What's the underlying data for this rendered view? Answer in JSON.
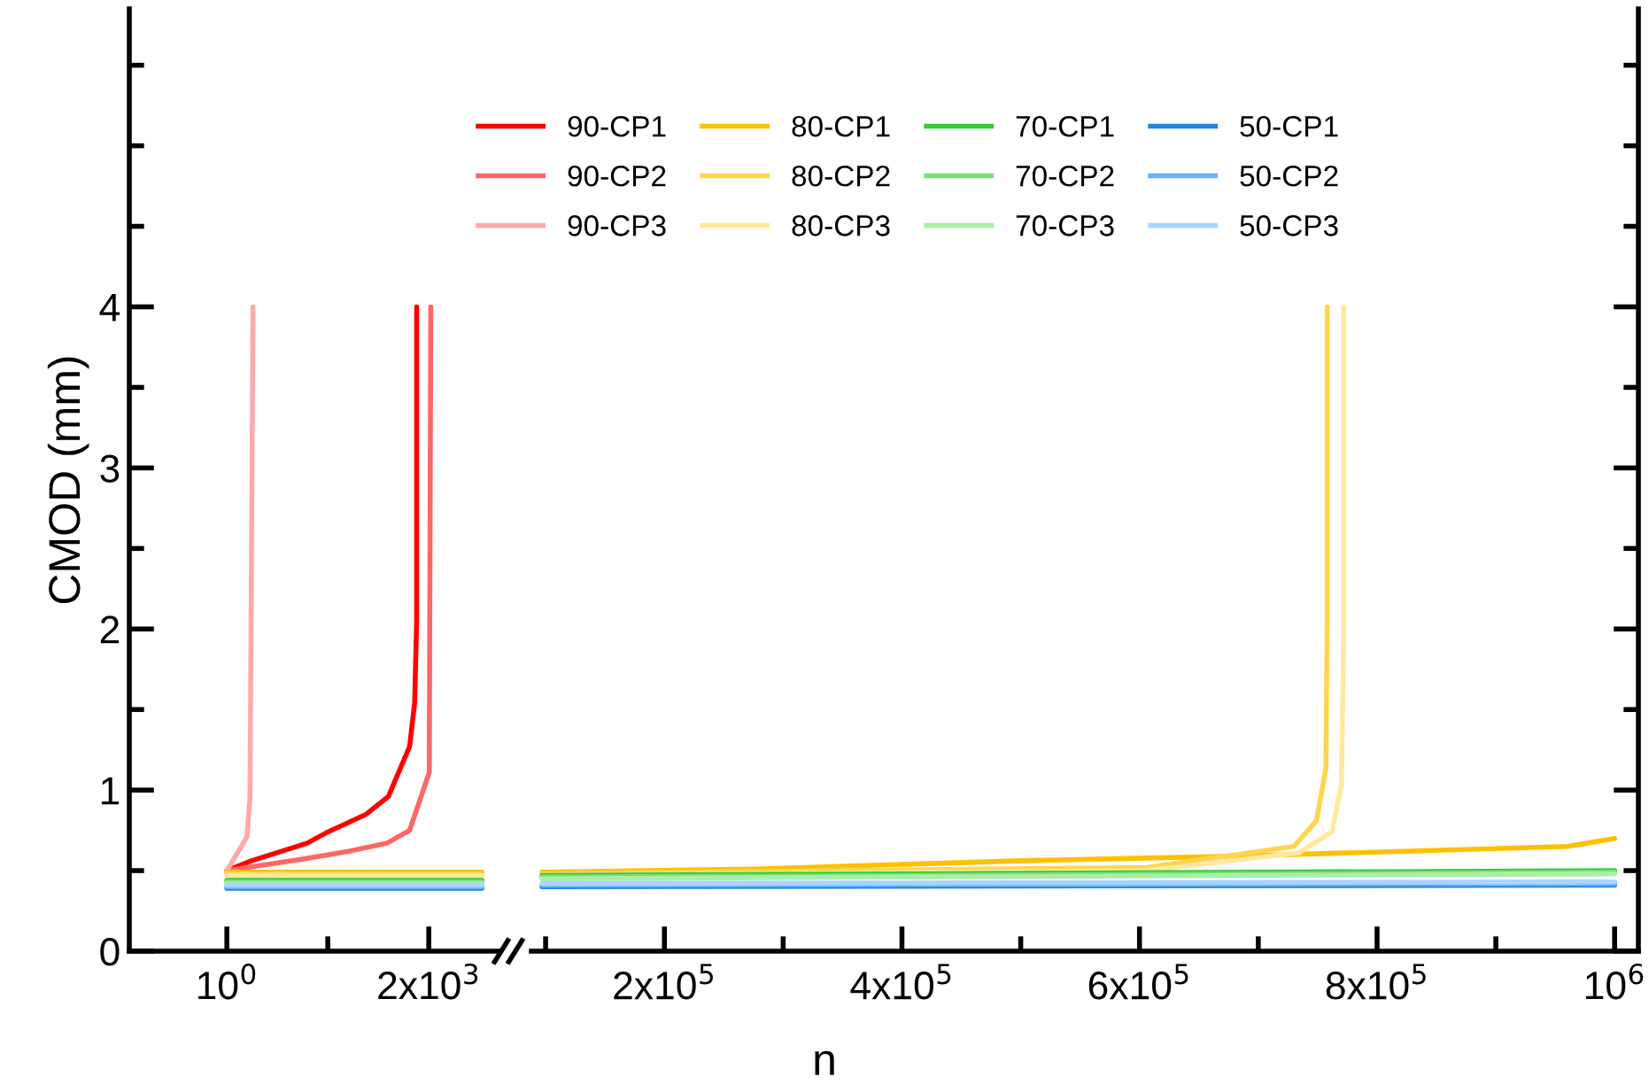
{
  "chart_data": [
    {
      "type": "line",
      "ylabel": "CMOD (mm)",
      "legend": "top",
      "grid": false,
      "line_style": "solid",
      "marker": "none",
      "xlim": [
        -965,
        2700
      ],
      "ylim": [
        0,
        5.85
      ],
      "xticks": [
        {
          "value": 1,
          "label": "10$^{0}$"
        },
        {
          "value": 1000,
          "label": null
        },
        {
          "value": 2000,
          "label": "2x10$^{3}$"
        }
      ],
      "yticks": [
        0,
        {
          "value": 0.5,
          "label": null
        },
        1,
        {
          "value": 1.5,
          "label": null
        },
        2,
        {
          "value": 2.5,
          "label": null
        },
        3,
        {
          "value": 3.5,
          "label": null
        },
        4,
        {
          "value": 4.5,
          "label": null
        },
        {
          "value": 5,
          "label": null
        },
        {
          "value": 5.5,
          "label": null
        }
      ],
      "series": [
        {
          "name": "90-CP1",
          "color": "#ff0000",
          "x": [
            1,
            240,
            795,
            1000,
            1380,
            1600,
            1810,
            1860,
            1880,
            1880
          ],
          "values": [
            0.5,
            0.56,
            0.67,
            0.74,
            0.85,
            0.96,
            1.27,
            1.54,
            2.05,
            4.0
          ]
        },
        {
          "name": "90-CP2",
          "color": "#ff6666",
          "x": [
            1,
            740,
            1205,
            1585,
            1810,
            2005,
            2020
          ],
          "values": [
            0.5,
            0.57,
            0.62,
            0.67,
            0.75,
            1.11,
            4.0
          ]
        },
        {
          "name": "90-CP3",
          "color": "#ffaaaa",
          "x": [
            1,
            200,
            230,
            260
          ],
          "values": [
            0.5,
            0.71,
            0.96,
            4.0
          ]
        },
        {
          "name": "80-CP1",
          "color": "#ffc000",
          "x": [
            1,
            2526
          ],
          "values": [
            0.49,
            0.49
          ]
        },
        {
          "name": "80-CP2",
          "color": "#ffd54f",
          "x": [
            1,
            2526
          ],
          "values": [
            0.48,
            0.48
          ]
        },
        {
          "name": "80-CP3",
          "color": "#ffe9a0",
          "x": [
            1,
            2526
          ],
          "values": [
            0.47,
            0.47
          ]
        },
        {
          "name": "70-CP1",
          "color": "#33cc33",
          "x": [
            1,
            2526
          ],
          "values": [
            0.44,
            0.44
          ]
        },
        {
          "name": "70-CP2",
          "color": "#77dd77",
          "x": [
            1,
            2526
          ],
          "values": [
            0.43,
            0.43
          ]
        },
        {
          "name": "70-CP3",
          "color": "#aaeeaa",
          "x": [
            1,
            2526
          ],
          "values": [
            0.42,
            0.42
          ]
        },
        {
          "name": "50-CP1",
          "color": "#1e88e5",
          "x": [
            1,
            2526
          ],
          "values": [
            0.39,
            0.39
          ]
        },
        {
          "name": "50-CP2",
          "color": "#66b2ff",
          "x": [
            1,
            2526
          ],
          "values": [
            0.4,
            0.4
          ]
        },
        {
          "name": "50-CP3",
          "color": "#a8d4ff",
          "x": [
            1,
            2526
          ],
          "values": [
            0.41,
            0.41
          ]
        }
      ]
    },
    {
      "type": "line",
      "xlabel": "n",
      "grid": false,
      "line_style": "solid",
      "marker": "none",
      "tick_labels": "x",
      "xlim": [
        88000,
        1020000
      ],
      "ylim": [
        0,
        5.85
      ],
      "xticks": [
        {
          "value": 100000,
          "label": null
        },
        {
          "value": 200000,
          "label": "2x10$^{5}$"
        },
        {
          "value": 300000,
          "label": null
        },
        {
          "value": 400000,
          "label": "4x10$^{5}$"
        },
        {
          "value": 500000,
          "label": null
        },
        {
          "value": 600000,
          "label": "6x10$^{5}$"
        },
        {
          "value": 700000,
          "label": null
        },
        {
          "value": 800000,
          "label": "8x10$^{5}$"
        },
        {
          "value": 900000,
          "label": null
        },
        {
          "value": 1000000,
          "label": "10$^{6}$"
        }
      ],
      "yticks": [
        0,
        {
          "value": 0.5,
          "label": null
        },
        1,
        {
          "value": 1.5,
          "label": null
        },
        2,
        {
          "value": 2.5,
          "label": null
        },
        3,
        {
          "value": 3.5,
          "label": null
        },
        4,
        {
          "value": 4.5,
          "label": null
        },
        {
          "value": 5,
          "label": null
        },
        {
          "value": 5.5,
          "label": null
        }
      ],
      "series": [
        {
          "color": "#ffc000",
          "x": [
            97000,
            276000,
            494000,
            680000,
            867000,
            960000,
            1000000
          ],
          "values": [
            0.49,
            0.51,
            0.56,
            0.59,
            0.63,
            0.65,
            0.7
          ]
        },
        {
          "color": "#ffd54f",
          "x": [
            97000,
            606000,
            730000,
            749000,
            757000,
            758000,
            758000
          ],
          "values": [
            0.48,
            0.52,
            0.65,
            0.81,
            1.14,
            2.05,
            4.0
          ]
        },
        {
          "color": "#ffe9a0",
          "x": [
            97000,
            606000,
            734000,
            762000,
            770000,
            772000,
            772000
          ],
          "values": [
            0.47,
            0.5,
            0.61,
            0.74,
            1.03,
            2.05,
            4.0
          ]
        },
        {
          "color": "#33cc33",
          "x": [
            97000,
            1000000
          ],
          "values": [
            0.47,
            0.5
          ]
        },
        {
          "color": "#77dd77",
          "x": [
            97000,
            1000000
          ],
          "values": [
            0.46,
            0.49
          ]
        },
        {
          "color": "#aaeeaa",
          "x": [
            97000,
            1000000
          ],
          "values": [
            0.45,
            0.48
          ]
        },
        {
          "color": "#1e88e5",
          "x": [
            97000,
            1000000
          ],
          "values": [
            0.4,
            0.41
          ]
        },
        {
          "color": "#66b2ff",
          "x": [
            97000,
            1000000
          ],
          "values": [
            0.41,
            0.42
          ]
        },
        {
          "color": "#a8d4ff",
          "x": [
            97000,
            1000000
          ],
          "values": [
            0.42,
            0.43
          ]
        }
      ]
    }
  ]
}
